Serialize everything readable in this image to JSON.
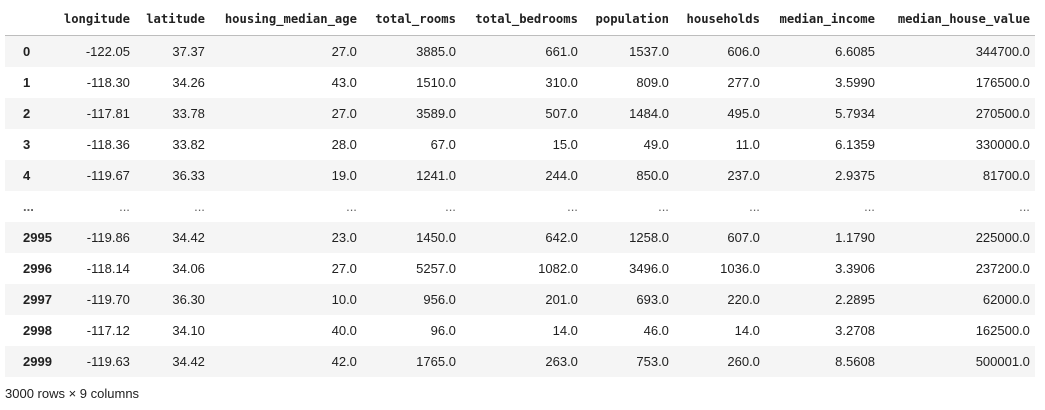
{
  "dataframe": {
    "columns": [
      "longitude",
      "latitude",
      "housing_median_age",
      "total_rooms",
      "total_bedrooms",
      "population",
      "households",
      "median_income",
      "median_house_value"
    ],
    "rows": [
      {
        "index": "0",
        "cells": [
          "-122.05",
          "37.37",
          "27.0",
          "3885.0",
          "661.0",
          "1537.0",
          "606.0",
          "6.6085",
          "344700.0"
        ]
      },
      {
        "index": "1",
        "cells": [
          "-118.30",
          "34.26",
          "43.0",
          "1510.0",
          "310.0",
          "809.0",
          "277.0",
          "3.5990",
          "176500.0"
        ]
      },
      {
        "index": "2",
        "cells": [
          "-117.81",
          "33.78",
          "27.0",
          "3589.0",
          "507.0",
          "1484.0",
          "495.0",
          "5.7934",
          "270500.0"
        ]
      },
      {
        "index": "3",
        "cells": [
          "-118.36",
          "33.82",
          "28.0",
          "67.0",
          "15.0",
          "49.0",
          "11.0",
          "6.1359",
          "330000.0"
        ]
      },
      {
        "index": "4",
        "cells": [
          "-119.67",
          "36.33",
          "19.0",
          "1241.0",
          "244.0",
          "850.0",
          "237.0",
          "2.9375",
          "81700.0"
        ]
      },
      {
        "index": "...",
        "cells": [
          "...",
          "...",
          "...",
          "...",
          "...",
          "...",
          "...",
          "...",
          "..."
        ]
      },
      {
        "index": "2995",
        "cells": [
          "-119.86",
          "34.42",
          "23.0",
          "1450.0",
          "642.0",
          "1258.0",
          "607.0",
          "1.1790",
          "225000.0"
        ]
      },
      {
        "index": "2996",
        "cells": [
          "-118.14",
          "34.06",
          "27.0",
          "5257.0",
          "1082.0",
          "3496.0",
          "1036.0",
          "3.3906",
          "237200.0"
        ]
      },
      {
        "index": "2997",
        "cells": [
          "-119.70",
          "36.30",
          "10.0",
          "956.0",
          "201.0",
          "693.0",
          "220.0",
          "2.2895",
          "62000.0"
        ]
      },
      {
        "index": "2998",
        "cells": [
          "-117.12",
          "34.10",
          "40.0",
          "96.0",
          "14.0",
          "46.0",
          "14.0",
          "3.2708",
          "162500.0"
        ]
      },
      {
        "index": "2999",
        "cells": [
          "-119.63",
          "34.42",
          "42.0",
          "1765.0",
          "263.0",
          "753.0",
          "260.0",
          "8.5608",
          "500001.0"
        ]
      }
    ],
    "shape_summary": "3000 rows × 9 columns"
  }
}
